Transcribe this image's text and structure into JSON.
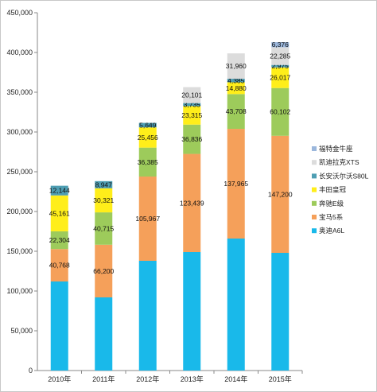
{
  "chart_data": {
    "type": "bar",
    "stacked": true,
    "title": "",
    "xlabel": "",
    "ylabel": "",
    "ylim": [
      0,
      450000
    ],
    "yticks": [
      0,
      50000,
      100000,
      150000,
      200000,
      250000,
      300000,
      350000,
      400000,
      450000
    ],
    "ytick_labels": [
      "0",
      "50,000",
      "100,000",
      "150,000",
      "200,000",
      "250,000",
      "300,000",
      "350,000",
      "400,000",
      "450,000"
    ],
    "categories": [
      "2010年",
      "2011年",
      "2012年",
      "2013年",
      "2014年",
      "2015年"
    ],
    "legend_position": "right",
    "grid": false,
    "series": [
      {
        "name": "奥迪A6L",
        "color": "#19b9ea",
        "values": [
          112000,
          92000,
          138000,
          149000,
          166000,
          148000
        ],
        "labels": [
          "",
          "",
          "",
          "",
          "",
          ""
        ]
      },
      {
        "name": "宝马5系",
        "color": "#f5a05a",
        "values": [
          40768,
          66200,
          105967,
          123439,
          137965,
          147200
        ],
        "labels": [
          "40,768",
          "66,200",
          "105,967",
          "123,439",
          "137,965",
          "147,200"
        ]
      },
      {
        "name": "奔驰E级",
        "color": "#9dcb5b",
        "values": [
          22304,
          40715,
          36385,
          36836,
          43708,
          60102
        ],
        "labels": [
          "22,304",
          "40,715",
          "36,385",
          "36,836",
          "43,708",
          "60,102"
        ]
      },
      {
        "name": "丰田皇冠",
        "color": "#ffee1a",
        "values": [
          45161,
          30321,
          25456,
          23315,
          14880,
          26017
        ],
        "labels": [
          "45,161",
          "30,321",
          "25,456",
          "23,315",
          "14,880",
          "26,017"
        ]
      },
      {
        "name": "长安沃尔沃S80L",
        "color": "#4e9eb3",
        "values": [
          12144,
          8947,
          5649,
          3735,
          4385,
          2975
        ],
        "labels": [
          "12,144",
          "8,947",
          "5,649",
          "3,735",
          "4,385",
          "2,975"
        ]
      },
      {
        "name": "凯迪拉克XTS",
        "color": "#dcdcdc",
        "values": [
          0,
          0,
          0,
          20101,
          31960,
          22285
        ],
        "labels": [
          "",
          "",
          "",
          "20,101",
          "31,960",
          "22,285"
        ]
      },
      {
        "name": "福特金牛座",
        "color": "#9bb7dc",
        "values": [
          0,
          0,
          0,
          0,
          0,
          6376
        ],
        "labels": [
          "",
          "",
          "",
          "",
          "",
          "6,376"
        ]
      }
    ]
  }
}
